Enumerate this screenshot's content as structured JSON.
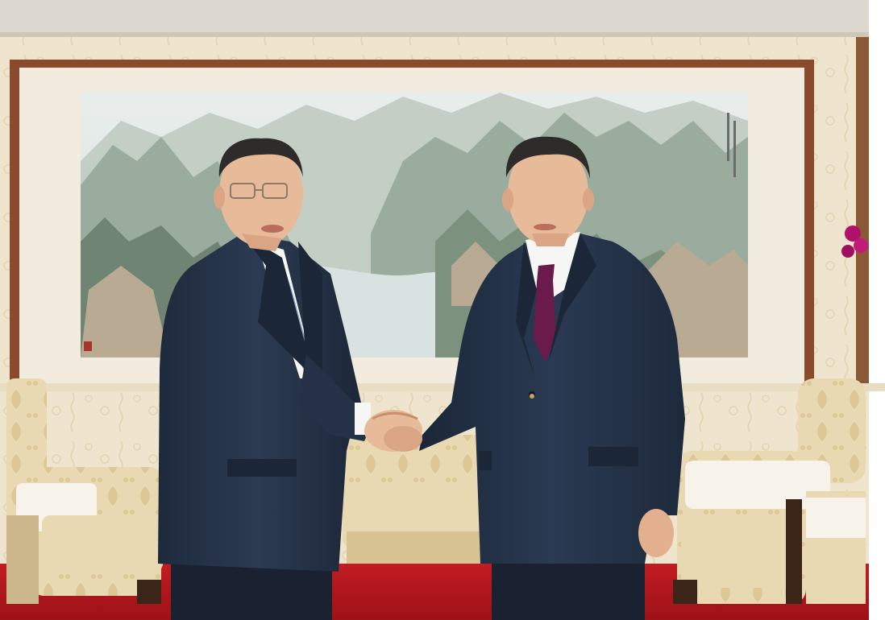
{
  "photo": {
    "subject": "",
    "colors": {
      "wallpaper": "#efe5cf",
      "wallpaper_pattern": "#e3d4b3",
      "frame_wood": "#8a4b2c",
      "mat": "#f2ecdf",
      "painting_sky": "#e7ecea",
      "mountain_dark": "#6f8472",
      "mountain_mid": "#9aac9d",
      "mountain_light": "#c3cfc4",
      "rock": "#b9ab93",
      "water": "#d8e2e1",
      "carpet": "#b3171c",
      "sofa": "#e9d9b3",
      "sofa_shadow": "#cdb88e",
      "lace": "#f7f3ea",
      "suit_left": "#27354a",
      "suit_right": "#24324a",
      "shirt": "#f6f6f4",
      "tie_left": "#8ea1c0",
      "tie_right": "#6a1a4b",
      "skin": "#e7bb9a",
      "skin_shadow": "#c98f6d",
      "hair": "#2e2c2a",
      "orchid": "#b0126a"
    }
  }
}
